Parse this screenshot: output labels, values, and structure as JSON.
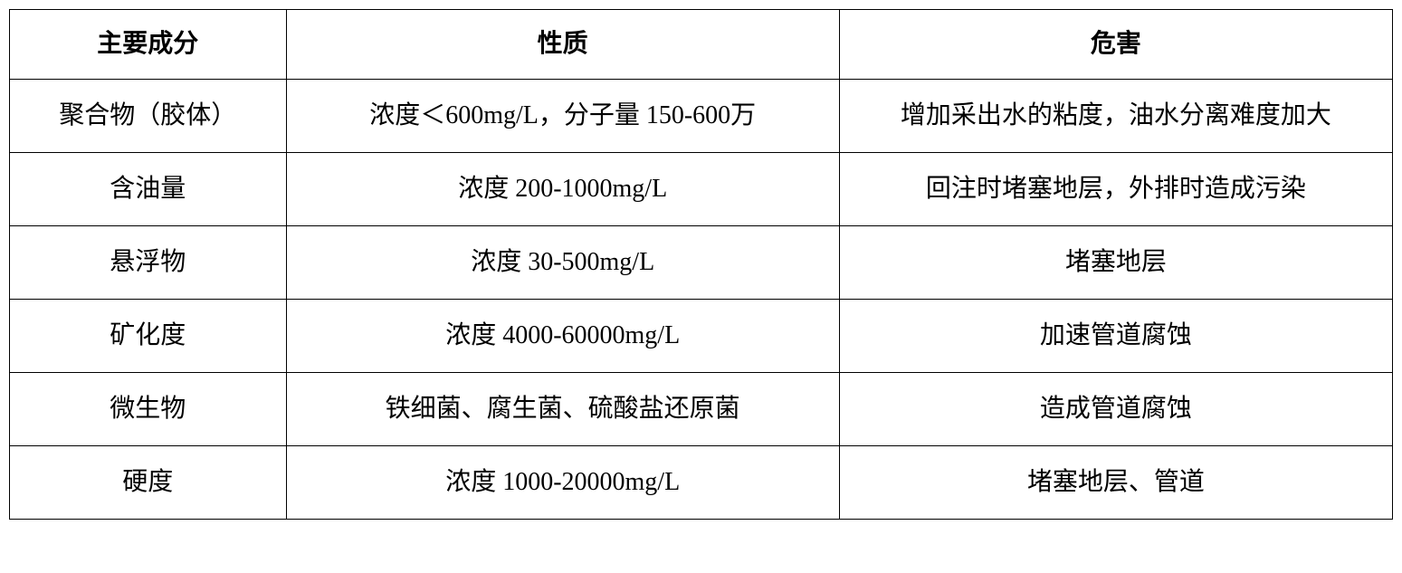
{
  "table": {
    "type": "table",
    "columns": [
      {
        "label": "主要成分",
        "width_pct": 20,
        "align": "center"
      },
      {
        "label": "性质",
        "width_pct": 40,
        "align": "center"
      },
      {
        "label": "危害",
        "width_pct": 40,
        "align": "center"
      }
    ],
    "rows": [
      [
        "聚合物（胶体）",
        "浓度＜600mg/L，分子量 150-600万",
        "增加采出水的粘度，油水分离难度加大"
      ],
      [
        "含油量",
        "浓度 200-1000mg/L",
        "回注时堵塞地层，外排时造成污染"
      ],
      [
        "悬浮物",
        "浓度 30-500mg/L",
        "堵塞地层"
      ],
      [
        "矿化度",
        "浓度 4000-60000mg/L",
        "加速管道腐蚀"
      ],
      [
        "微生物",
        "铁细菌、腐生菌、硫酸盐还原菌",
        "造成管道腐蚀"
      ],
      [
        "硬度",
        "浓度 1000-20000mg/L",
        "堵塞地层、管道"
      ]
    ],
    "styling": {
      "border_color": "#000000",
      "border_width": 1.5,
      "background_color": "#ffffff",
      "text_color": "#000000",
      "font_family": "SimSun",
      "header_fontsize": 28,
      "header_fontweight": "bold",
      "cell_fontsize": 28,
      "cell_fontweight": "normal",
      "line_height": 2.0,
      "cell_padding": 12,
      "text_align": "center",
      "vertical_align": "middle"
    }
  }
}
